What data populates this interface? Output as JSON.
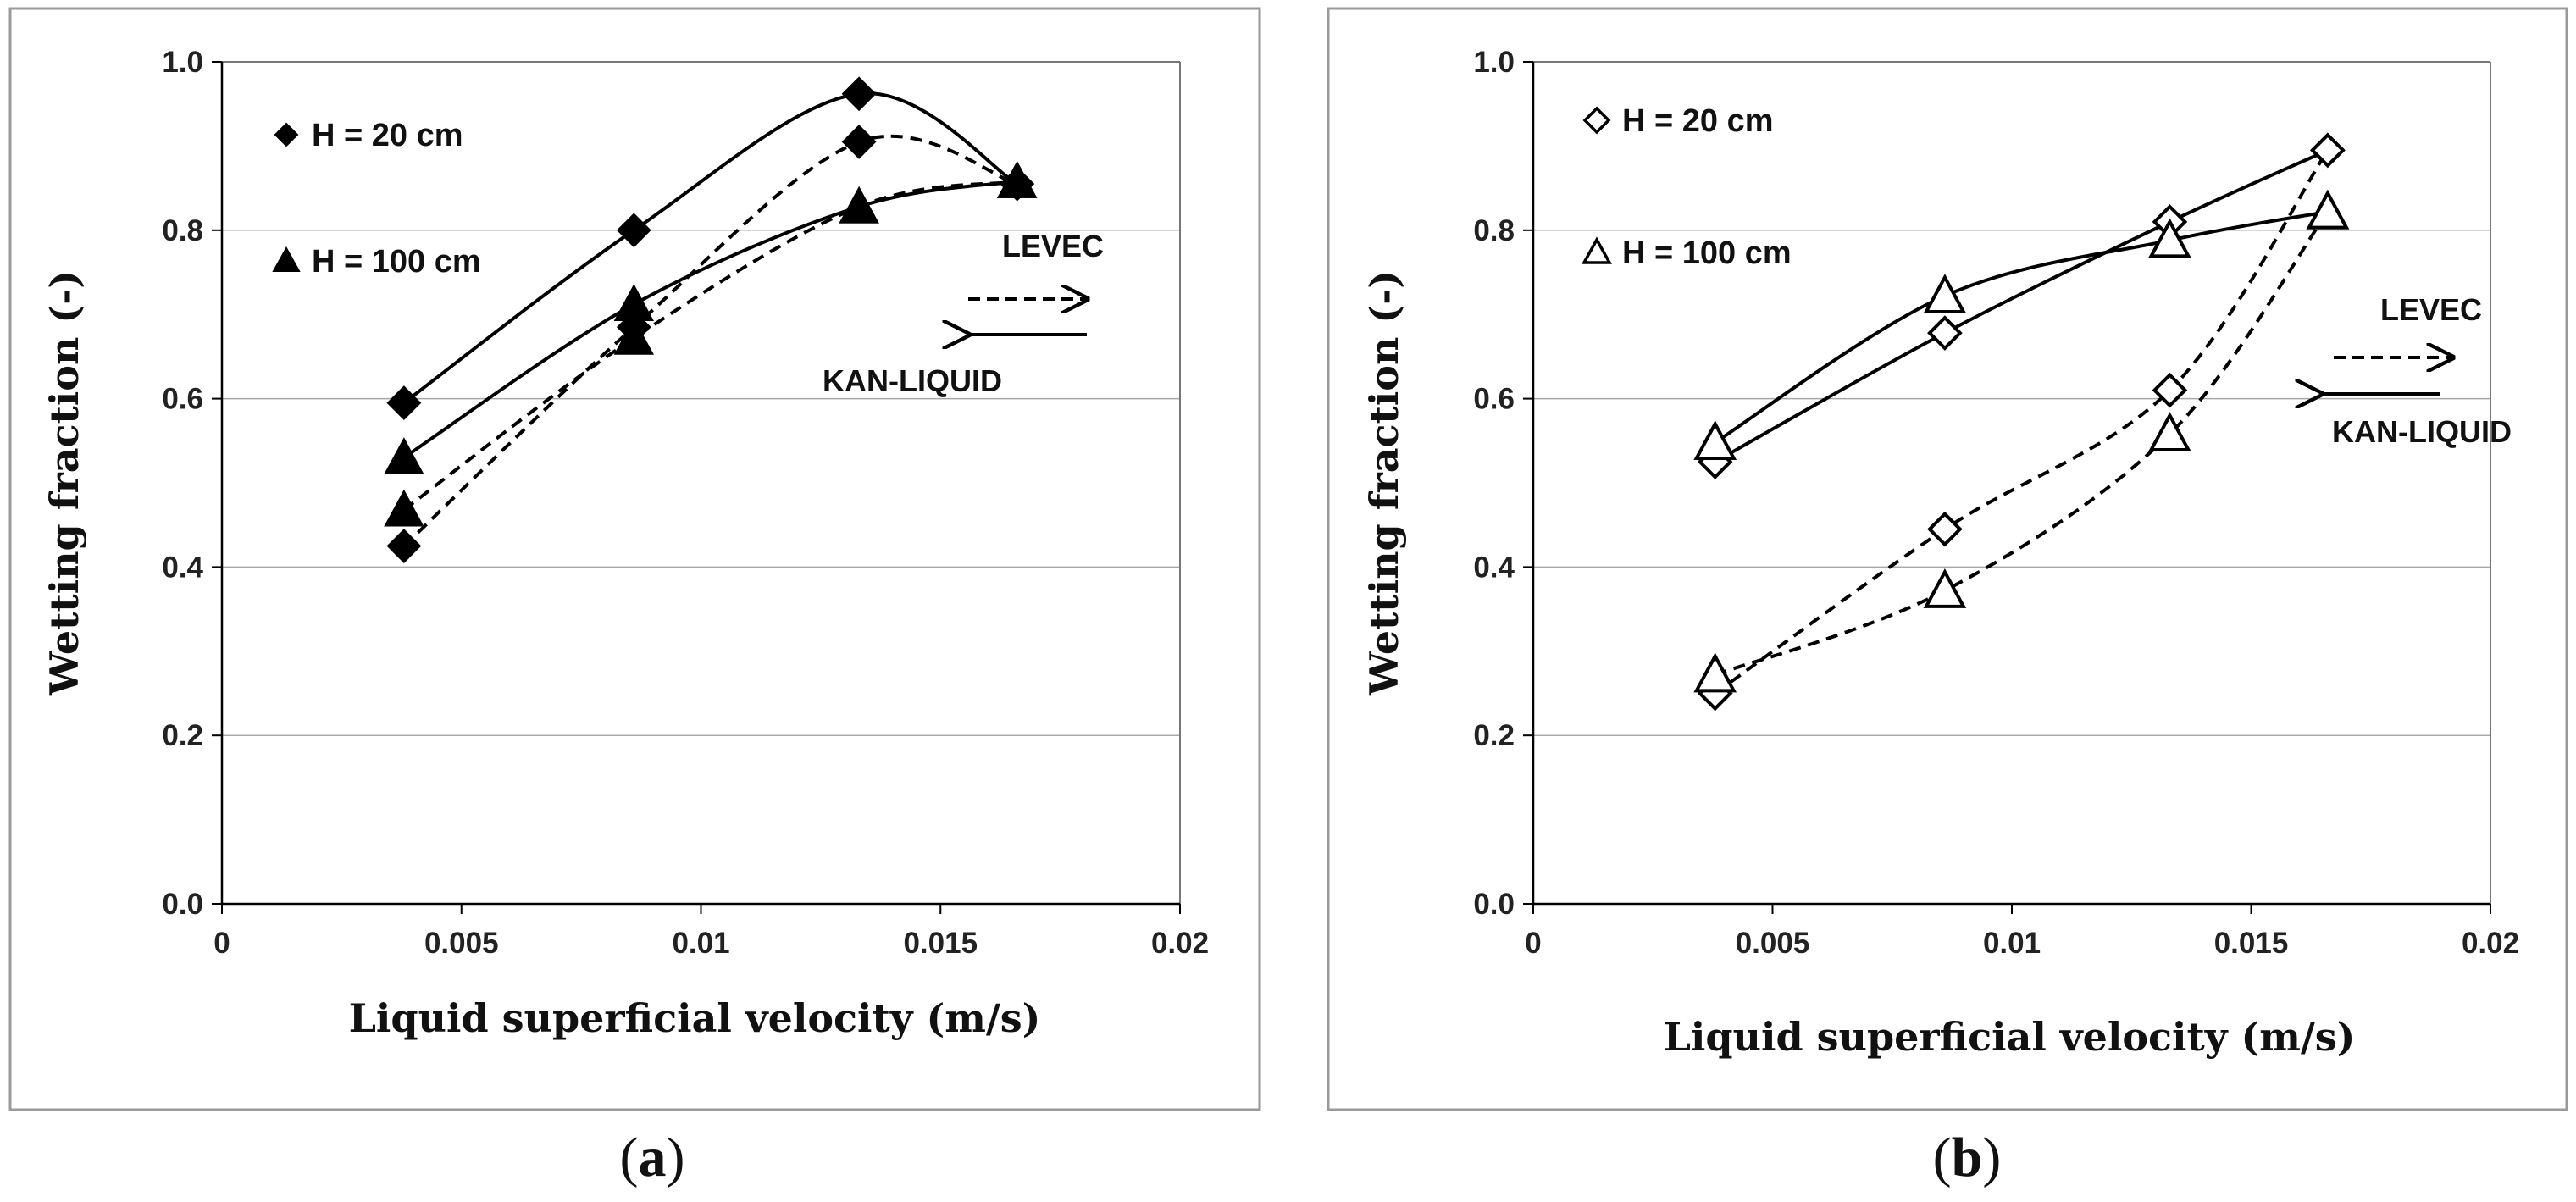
{
  "chart_data": [
    {
      "type": "line",
      "panel": "a",
      "caption_open": "(",
      "caption_letter": "a",
      "caption_close": ")",
      "xlabel": "Liquid superficial velocity (m/s)",
      "ylabel": "Wetting fraction (-)",
      "xlim": [
        0,
        0.02
      ],
      "ylim": [
        0,
        1.0
      ],
      "xticks": [
        "0",
        "0.005",
        "0.01",
        "0.015",
        "0.02"
      ],
      "yticks": [
        "0.0",
        "0.2",
        "0.4",
        "0.6",
        "0.8",
        "1.0"
      ],
      "legend": [
        "H =  20 cm",
        "H = 100 cm"
      ],
      "annotation_dashed": "LEVEC",
      "annotation_solid": "KAN-LIQUID",
      "series": [
        {
          "name": "H =  20 cm",
          "model": "KAN-LIQUID",
          "marker": "diamond-filled",
          "line": "solid",
          "x": [
            0.0038,
            0.0086,
            0.0133,
            0.0166
          ],
          "values": [
            0.595,
            0.8,
            0.962,
            0.855
          ]
        },
        {
          "name": "H =  20 cm",
          "model": "LEVEC",
          "marker": "diamond-filled",
          "line": "dashed",
          "x": [
            0.0038,
            0.0086,
            0.0133,
            0.0166
          ],
          "values": [
            0.425,
            0.685,
            0.905,
            0.855
          ]
        },
        {
          "name": "H = 100 cm",
          "model": "KAN-LIQUID",
          "marker": "triangle-filled",
          "line": "solid",
          "x": [
            0.0038,
            0.0086,
            0.0133,
            0.0166
          ],
          "values": [
            0.53,
            0.712,
            0.828,
            0.858
          ]
        },
        {
          "name": "H = 100 cm",
          "model": "LEVEC",
          "marker": "triangle-filled",
          "line": "dashed",
          "x": [
            0.0038,
            0.0086,
            0.0133,
            0.0166
          ],
          "values": [
            0.468,
            0.672,
            0.828,
            0.858
          ]
        }
      ]
    },
    {
      "type": "line",
      "panel": "b",
      "caption_open": "(",
      "caption_letter": "b",
      "caption_close": ")",
      "xlabel": "Liquid superficial velocity (m/s)",
      "ylabel": "Wetting fraction (-)",
      "xlim": [
        0,
        0.02
      ],
      "ylim": [
        0,
        1.0
      ],
      "xticks": [
        "0",
        "0.005",
        "0.01",
        "0.015",
        "0.02"
      ],
      "yticks": [
        "0.0",
        "0.2",
        "0.4",
        "0.6",
        "0.8",
        "1.0"
      ],
      "legend": [
        "H =  20 cm",
        "H = 100 cm"
      ],
      "annotation_dashed": "LEVEC",
      "annotation_solid": "KAN-LIQUID",
      "series": [
        {
          "name": "H =  20 cm",
          "model": "KAN-LIQUID",
          "marker": "diamond-open",
          "line": "solid",
          "x": [
            0.0038,
            0.0086,
            0.0133,
            0.0166
          ],
          "values": [
            0.525,
            0.678,
            0.81,
            0.895
          ]
        },
        {
          "name": "H =  20 cm",
          "model": "LEVEC",
          "marker": "diamond-open",
          "line": "dashed",
          "x": [
            0.0038,
            0.0086,
            0.0133,
            0.0166
          ],
          "values": [
            0.25,
            0.445,
            0.61,
            0.895
          ]
        },
        {
          "name": "H = 100 cm",
          "model": "KAN-LIQUID",
          "marker": "triangle-open",
          "line": "solid",
          "x": [
            0.0038,
            0.0086,
            0.0133,
            0.0166
          ],
          "values": [
            0.548,
            0.722,
            0.788,
            0.822
          ]
        },
        {
          "name": "H = 100 cm",
          "model": "LEVEC",
          "marker": "triangle-open",
          "line": "dashed",
          "x": [
            0.0038,
            0.0086,
            0.0133,
            0.0166
          ],
          "values": [
            0.272,
            0.372,
            0.558,
            0.822
          ]
        }
      ]
    }
  ]
}
